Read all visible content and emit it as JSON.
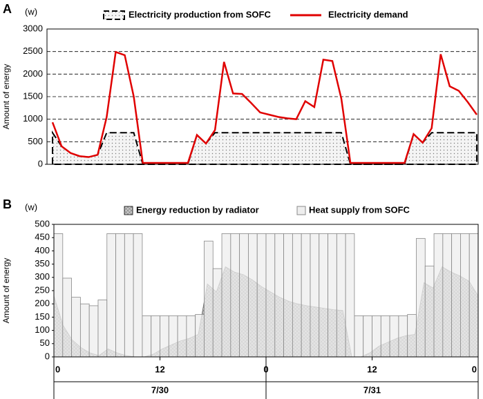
{
  "chart_data": [
    {
      "type": "line",
      "panel": "A",
      "y_unit": "(w)",
      "ylabel": "Amount of energy",
      "ylim": [
        0,
        3000
      ],
      "yticks": [
        0,
        500,
        1000,
        1500,
        2000,
        2500,
        3000
      ],
      "grid": true,
      "series": [
        {
          "name": "Electricity production from SOFC",
          "color": "#000000",
          "kind": "area",
          "values": [
            700,
            400,
            250,
            180,
            160,
            210,
            700,
            700,
            700,
            700,
            0,
            0,
            0,
            0,
            0,
            0,
            650,
            460,
            700,
            700,
            700,
            700,
            700,
            700,
            700,
            700,
            700,
            700,
            700,
            700,
            700,
            700,
            700,
            0,
            0,
            0,
            0,
            0,
            0,
            0,
            670,
            480,
            700,
            700,
            700,
            700,
            700,
            700
          ]
        },
        {
          "name": "Electricity demand",
          "color": "#e00000",
          "kind": "line",
          "values": [
            930,
            400,
            250,
            180,
            160,
            210,
            1050,
            2490,
            2420,
            1500,
            30,
            30,
            30,
            30,
            30,
            30,
            650,
            460,
            760,
            2270,
            1570,
            1560,
            1360,
            1150,
            1100,
            1050,
            1020,
            1000,
            1400,
            1270,
            2320,
            2290,
            1450,
            30,
            30,
            30,
            30,
            30,
            30,
            30,
            670,
            480,
            800,
            2440,
            1730,
            1630,
            1380,
            1100
          ]
        }
      ]
    },
    {
      "type": "bar",
      "panel": "B",
      "y_unit": "(w)",
      "ylabel": "Amount of energy",
      "ylim": [
        0,
        500
      ],
      "yticks": [
        0,
        50,
        100,
        150,
        200,
        250,
        300,
        350,
        400,
        450,
        500
      ],
      "grid": false,
      "xlim": [
        0,
        48
      ],
      "xticks": [
        0,
        12,
        {
          "value": 24,
          "label": "0"
        },
        {
          "value": 36,
          "label": "12"
        },
        {
          "value": 48,
          "label": "0"
        }
      ],
      "date_labels": [
        "7/30",
        "7/31"
      ],
      "series": [
        {
          "name": "Energy reduction by radiator",
          "color": "#a0a0a0",
          "kind": "area",
          "values": [
            230,
            120,
            65,
            35,
            15,
            5,
            30,
            15,
            5,
            0,
            0,
            10,
            30,
            45,
            60,
            70,
            85,
            275,
            245,
            340,
            320,
            310,
            290,
            265,
            245,
            225,
            210,
            200,
            193,
            188,
            183,
            178,
            175,
            0,
            0,
            15,
            40,
            55,
            70,
            80,
            85,
            280,
            260,
            340,
            320,
            305,
            285,
            230
          ]
        },
        {
          "name": "Heat supply from SOFC",
          "color": "#eeeeee",
          "kind": "bar",
          "values": [
            465,
            297,
            225,
            200,
            193,
            215,
            465,
            465,
            465,
            465,
            155,
            155,
            155,
            155,
            155,
            155,
            160,
            437,
            333,
            465,
            465,
            465,
            465,
            465,
            465,
            465,
            465,
            465,
            465,
            465,
            465,
            465,
            465,
            465,
            155,
            155,
            155,
            155,
            155,
            155,
            160,
            447,
            343,
            465,
            465,
            465,
            465,
            465
          ]
        }
      ]
    }
  ]
}
